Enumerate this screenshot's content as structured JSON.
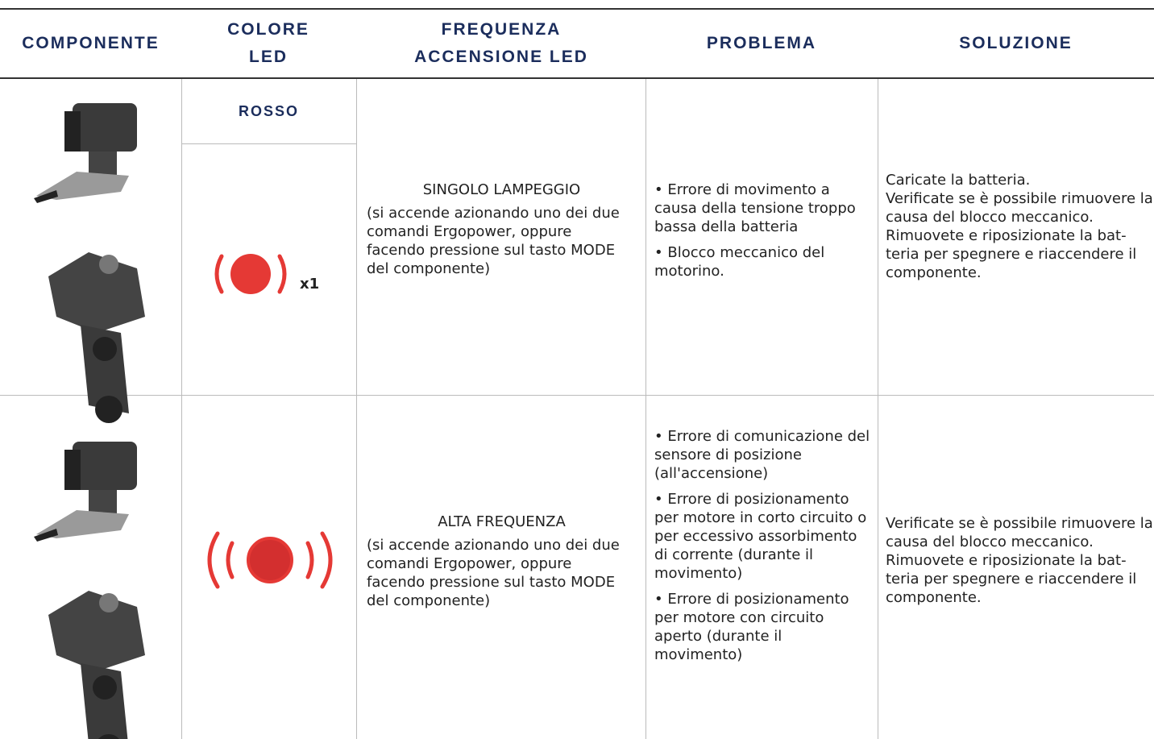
{
  "table": {
    "headers": [
      "COMPONENTE",
      "COLORE LED",
      "FREQUENZA ACCENSIONE LED",
      "PROBLEMA",
      "SOLUZIONE"
    ],
    "rows": [
      {
        "color": "ROSSO",
        "led_count": "x1",
        "frequency": "SINGOLO LAMPEGGIO",
        "frequency_note": "(si accende azionando uno dei due comandi Ergopower, oppure facendo pressione sul tasto MODE del componente)",
        "problems": [
          "• Errore di movimento a causa della tensione trop­po bassa della batteria",
          "• Blocco meccanico del motorino."
        ],
        "solution": [
          "Caricate la batteria.",
          "Verificate se è possibile rimuove­re la causa del blocco meccanico.",
          "Rimuovete e riposizionate la bat­teria per spegnere e riaccendere il componente."
        ]
      },
      {
        "frequency": "ALTA FREQUENZA",
        "frequency_note": "(si accende azionando uno dei due comandi Ergopower, oppure facendo pressione sul tasto MODE del componente)",
        "problems": [
          "• Errore di comunicazione del sensore di posizione (all'accensione)",
          "• Errore di posizionamen­to per motore in corto circuito o per eccessivo assorbimento di corrente (durante il movimento)",
          "• Errore di posiziona­mento per motore con circuito aperto (durante il movimento)"
        ],
        "solution": [
          "Verificate se è possibile rimuove­re la causa del blocco meccanico.",
          "Rimuovete e riposizionate la bat­teria per spegnere e riaccendere il componente."
        ]
      }
    ]
  }
}
